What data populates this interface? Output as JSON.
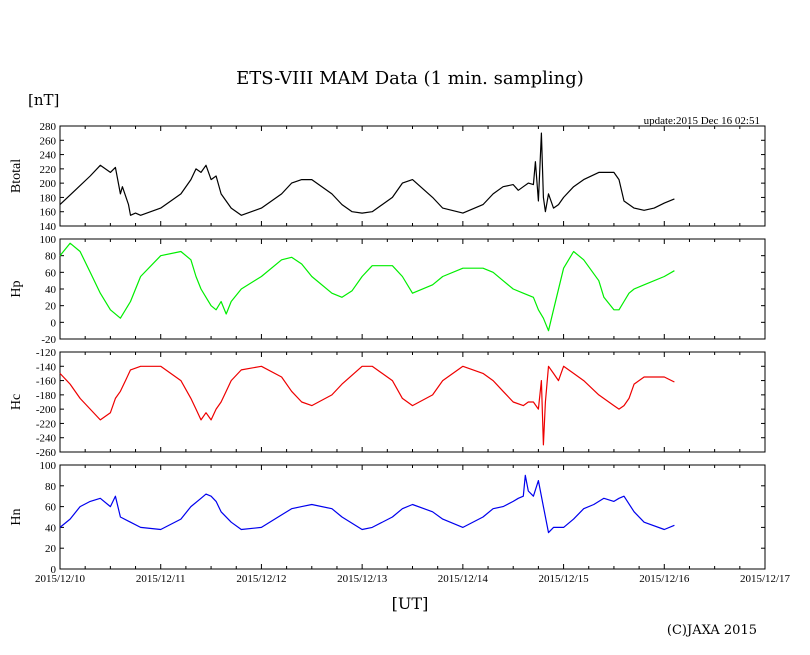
{
  "chart_data": {
    "type": "line",
    "title": "ETS-VIII MAM Data (1 min. sampling)",
    "unit_label": "[nT]",
    "update_text": "update:2015 Dec 16 02:51",
    "xlabel": "[UT]",
    "copyright": "(C)JAXA 2015",
    "x_unit": "days since 2015/12/10 00:00 UT",
    "xlim": [
      0,
      7
    ],
    "x_ticks": [
      {
        "x": 0,
        "label": "2015/12/10"
      },
      {
        "x": 1,
        "label": "2015/12/11"
      },
      {
        "x": 2,
        "label": "2015/12/12"
      },
      {
        "x": 3,
        "label": "2015/12/13"
      },
      {
        "x": 4,
        "label": "2015/12/14"
      },
      {
        "x": 5,
        "label": "2015/12/15"
      },
      {
        "x": 6,
        "label": "2015/12/16"
      },
      {
        "x": 7,
        "label": "2015/12/17"
      }
    ],
    "panels": [
      {
        "name": "Btotal",
        "ylabel": "Btotal",
        "color": "#000000",
        "ylim": [
          140,
          280
        ],
        "yticks": [
          "280",
          "260",
          "240",
          "220",
          "200",
          "180",
          "160",
          "140"
        ],
        "x": [
          0,
          0.15,
          0.3,
          0.4,
          0.5,
          0.55,
          0.6,
          0.62,
          0.68,
          0.7,
          0.75,
          0.8,
          1.0,
          1.2,
          1.3,
          1.35,
          1.4,
          1.45,
          1.5,
          1.55,
          1.6,
          1.7,
          1.8,
          2.0,
          2.2,
          2.3,
          2.4,
          2.5,
          2.7,
          2.8,
          2.9,
          3.0,
          3.1,
          3.3,
          3.4,
          3.5,
          3.7,
          3.8,
          4.0,
          4.2,
          4.3,
          4.4,
          4.5,
          4.55,
          4.6,
          4.65,
          4.7,
          4.72,
          4.75,
          4.78,
          4.8,
          4.82,
          4.85,
          4.9,
          4.95,
          5.0,
          5.1,
          5.2,
          5.35,
          5.5,
          5.55,
          5.6,
          5.7,
          5.8,
          5.9,
          6.0,
          6.1
        ],
        "y": [
          170,
          190,
          210,
          225,
          215,
          222,
          185,
          195,
          170,
          155,
          158,
          155,
          165,
          185,
          205,
          220,
          215,
          225,
          205,
          210,
          185,
          165,
          155,
          165,
          185,
          200,
          205,
          205,
          185,
          170,
          160,
          158,
          160,
          180,
          200,
          205,
          180,
          165,
          158,
          170,
          185,
          195,
          198,
          190,
          195,
          200,
          198,
          230,
          175,
          270,
          180,
          160,
          185,
          165,
          170,
          180,
          195,
          205,
          215,
          215,
          205,
          175,
          165,
          162,
          165,
          172,
          178
        ]
      },
      {
        "name": "Hp",
        "ylabel": "Hp",
        "color": "#00ee00",
        "ylim": [
          -20,
          100
        ],
        "yticks": [
          "100",
          "80",
          "60",
          "40",
          "20",
          "0",
          "-20"
        ],
        "x": [
          0,
          0.1,
          0.2,
          0.3,
          0.4,
          0.5,
          0.6,
          0.7,
          0.8,
          1.0,
          1.2,
          1.3,
          1.35,
          1.4,
          1.45,
          1.5,
          1.55,
          1.6,
          1.65,
          1.7,
          1.8,
          2.0,
          2.2,
          2.3,
          2.4,
          2.5,
          2.7,
          2.8,
          2.9,
          3.0,
          3.1,
          3.3,
          3.4,
          3.5,
          3.7,
          3.8,
          4.0,
          4.2,
          4.3,
          4.4,
          4.5,
          4.6,
          4.7,
          4.75,
          4.8,
          4.85,
          4.9,
          5.0,
          5.1,
          5.2,
          5.35,
          5.4,
          5.5,
          5.55,
          5.6,
          5.65,
          5.7,
          5.8,
          6.0,
          6.1
        ],
        "y": [
          80,
          95,
          85,
          60,
          35,
          15,
          5,
          25,
          55,
          80,
          85,
          75,
          55,
          40,
          30,
          20,
          15,
          25,
          10,
          25,
          40,
          55,
          75,
          78,
          70,
          55,
          35,
          30,
          38,
          55,
          68,
          68,
          55,
          35,
          45,
          55,
          65,
          65,
          60,
          50,
          40,
          35,
          30,
          15,
          5,
          -10,
          15,
          65,
          85,
          75,
          50,
          30,
          15,
          15,
          25,
          35,
          40,
          45,
          55,
          62
        ]
      },
      {
        "name": "Hc",
        "ylabel": "Hc",
        "color": "#ee0000",
        "ylim": [
          -260,
          -120
        ],
        "yticks": [
          "-120",
          "-140",
          "-160",
          "-180",
          "-200",
          "-220",
          "-240",
          "-260"
        ],
        "x": [
          0,
          0.1,
          0.2,
          0.3,
          0.4,
          0.5,
          0.55,
          0.6,
          0.65,
          0.7,
          0.8,
          1.0,
          1.2,
          1.3,
          1.35,
          1.4,
          1.45,
          1.5,
          1.55,
          1.6,
          1.65,
          1.7,
          1.8,
          2.0,
          2.2,
          2.3,
          2.4,
          2.5,
          2.7,
          2.8,
          3.0,
          3.1,
          3.3,
          3.4,
          3.5,
          3.7,
          3.8,
          4.0,
          4.2,
          4.3,
          4.4,
          4.5,
          4.6,
          4.65,
          4.7,
          4.75,
          4.78,
          4.8,
          4.82,
          4.85,
          4.9,
          4.95,
          5.0,
          5.1,
          5.2,
          5.35,
          5.5,
          5.55,
          5.6,
          5.65,
          5.7,
          5.8,
          6.0,
          6.1
        ],
        "y": [
          -150,
          -165,
          -185,
          -200,
          -215,
          -205,
          -185,
          -175,
          -160,
          -145,
          -140,
          -140,
          -160,
          -185,
          -200,
          -215,
          -205,
          -215,
          -200,
          -190,
          -175,
          -160,
          -145,
          -140,
          -155,
          -175,
          -190,
          -195,
          -180,
          -165,
          -140,
          -140,
          -160,
          -185,
          -195,
          -180,
          -160,
          -140,
          -150,
          -160,
          -175,
          -190,
          -195,
          -190,
          -190,
          -200,
          -160,
          -250,
          -190,
          -140,
          -150,
          -160,
          -140,
          -150,
          -160,
          -180,
          -195,
          -200,
          -195,
          -185,
          -165,
          -155,
          -155,
          -162
        ]
      },
      {
        "name": "Hn",
        "ylabel": "Hn",
        "color": "#0000ee",
        "ylim": [
          0,
          100
        ],
        "yticks": [
          "100",
          "80",
          "60",
          "40",
          "20",
          "0"
        ],
        "x": [
          0,
          0.1,
          0.2,
          0.3,
          0.4,
          0.5,
          0.55,
          0.6,
          0.7,
          0.8,
          1.0,
          1.2,
          1.3,
          1.4,
          1.45,
          1.5,
          1.55,
          1.6,
          1.7,
          1.8,
          2.0,
          2.2,
          2.3,
          2.4,
          2.5,
          2.7,
          2.8,
          3.0,
          3.1,
          3.3,
          3.4,
          3.5,
          3.7,
          3.8,
          4.0,
          4.2,
          4.3,
          4.4,
          4.5,
          4.55,
          4.6,
          4.62,
          4.65,
          4.7,
          4.75,
          4.8,
          4.85,
          4.9,
          5.0,
          5.1,
          5.2,
          5.3,
          5.4,
          5.5,
          5.55,
          5.6,
          5.7,
          5.8,
          6.0,
          6.1
        ],
        "y": [
          40,
          48,
          60,
          65,
          68,
          60,
          70,
          50,
          45,
          40,
          38,
          48,
          60,
          68,
          72,
          70,
          65,
          55,
          45,
          38,
          40,
          52,
          58,
          60,
          62,
          58,
          50,
          38,
          40,
          50,
          58,
          62,
          55,
          48,
          40,
          50,
          58,
          60,
          65,
          68,
          70,
          90,
          75,
          70,
          85,
          60,
          35,
          40,
          40,
          48,
          58,
          62,
          68,
          65,
          68,
          70,
          55,
          45,
          38,
          42
        ]
      }
    ]
  }
}
